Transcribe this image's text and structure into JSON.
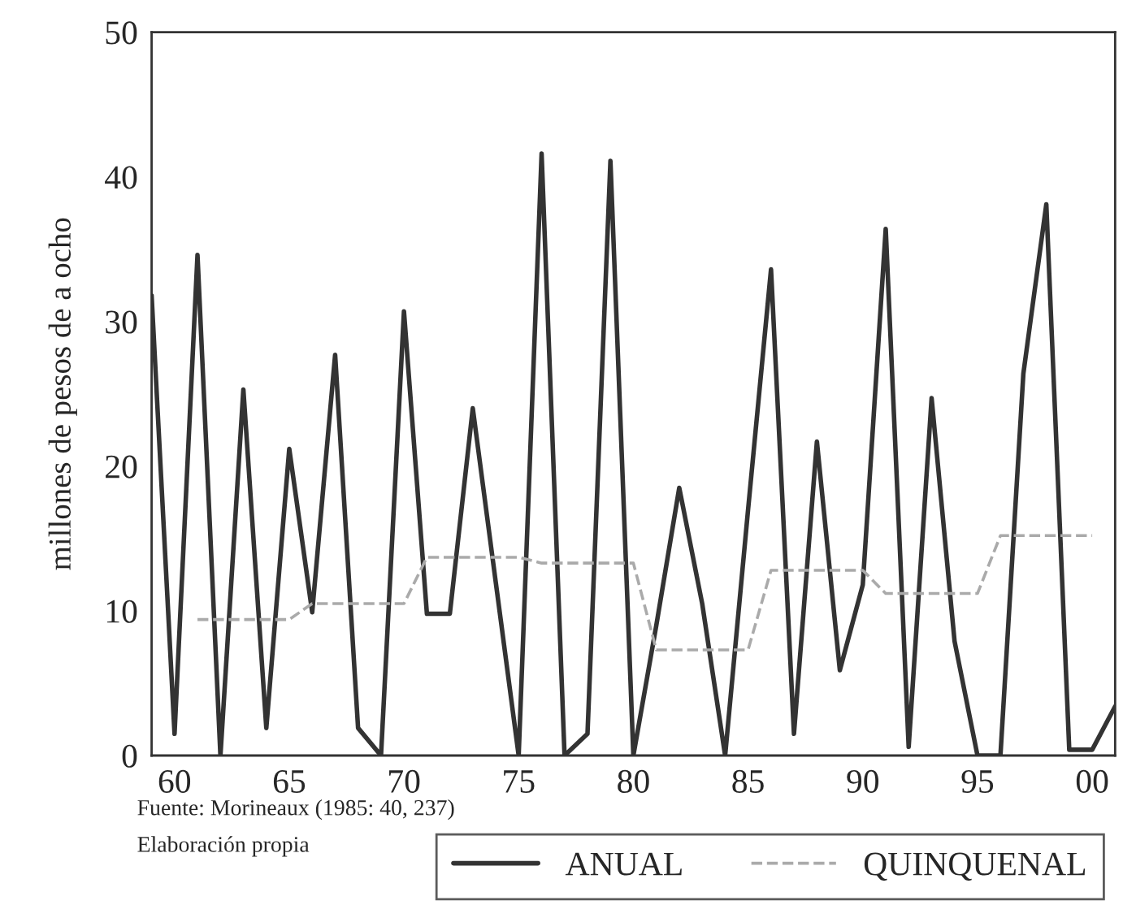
{
  "chart_data": {
    "type": "line",
    "categories": [
      null,
      "60",
      null,
      null,
      null,
      null,
      "65",
      null,
      null,
      null,
      null,
      "70",
      null,
      null,
      null,
      null,
      "75",
      null,
      null,
      null,
      null,
      "80",
      null,
      null,
      null,
      null,
      "85",
      null,
      null,
      null,
      null,
      "90",
      null,
      null,
      null,
      null,
      "95",
      null,
      null,
      null,
      null,
      "00",
      null
    ],
    "series": [
      {
        "name": "ANUAL",
        "color": "#333333",
        "line_style": "solid",
        "values": [
          31.8,
          1.5,
          34.6,
          0,
          25.3,
          1.9,
          21.2,
          9.9,
          27.7,
          1.9,
          0,
          30.7,
          9.8,
          9.8,
          24.0,
          12,
          0,
          41.6,
          0,
          1.5,
          41.1,
          0,
          9,
          18.5,
          10.5,
          0,
          17,
          33.6,
          1.5,
          21.7,
          5.9,
          11.8,
          36.4,
          0.6,
          24.7,
          7.9,
          0,
          0,
          26.4,
          38.1,
          0.4,
          0.4,
          3.4
        ]
      },
      {
        "name": "QUINQUENAL",
        "color": "#aaaaaa",
        "line_style": "dashed",
        "values": [
          null,
          null,
          9.4,
          9.4,
          9.4,
          9.4,
          9.4,
          10.5,
          10.5,
          10.5,
          10.5,
          10.5,
          13.7,
          13.7,
          13.7,
          13.7,
          13.7,
          13.3,
          13.3,
          13.3,
          13.3,
          13.3,
          7.3,
          7.3,
          7.3,
          7.3,
          7.3,
          12.8,
          12.8,
          12.8,
          12.8,
          12.8,
          11.2,
          11.2,
          11.2,
          11.2,
          11.2,
          15.2,
          15.2,
          15.2,
          15.2,
          15.2,
          null
        ]
      }
    ],
    "ylabel": "millones de pesos de a ocho",
    "ylim": [
      0,
      50
    ],
    "yticks": [
      0,
      10,
      20,
      30,
      40,
      50
    ],
    "grid": false,
    "legend": "bottom right",
    "annotations": [
      "Fuente: Morineaux (1985: 40, 237)",
      "Elaboración propia"
    ]
  }
}
